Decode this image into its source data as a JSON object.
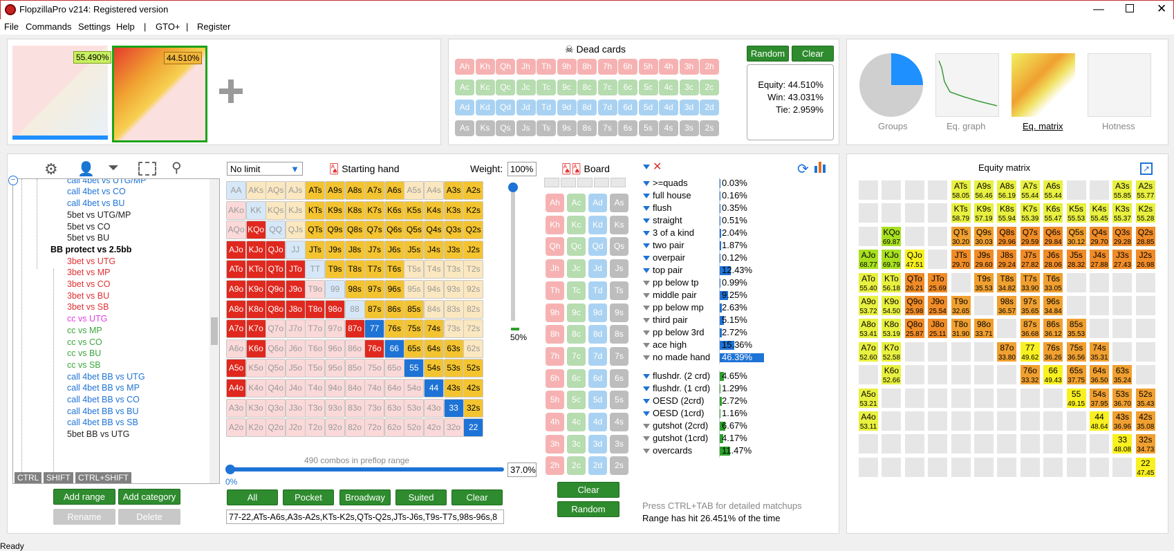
{
  "window": {
    "title": "FlopzillaPro v214: Registered version"
  },
  "menu": [
    "File",
    "Commands",
    "Settings",
    "Help",
    "|",
    "GTO+",
    "|",
    "Register"
  ],
  "ranges": {
    "left_pct": "55.490%",
    "right_pct": "44.510%"
  },
  "dead_cards": {
    "title": "Dead cards",
    "random": "Random",
    "clear": "Clear",
    "rows": [
      [
        "Ah",
        "Kh",
        "Qh",
        "Jh",
        "Th",
        "9h",
        "8h",
        "7h",
        "6h",
        "5h",
        "4h",
        "3h",
        "2h"
      ],
      [
        "Ac",
        "Kc",
        "Qc",
        "Jc",
        "Tc",
        "9c",
        "8c",
        "7c",
        "6c",
        "5c",
        "4c",
        "3c",
        "2c"
      ],
      [
        "Ad",
        "Kd",
        "Qd",
        "Jd",
        "Td",
        "9d",
        "8d",
        "7d",
        "6d",
        "5d",
        "4d",
        "3d",
        "2d"
      ],
      [
        "As",
        "Ks",
        "Qs",
        "Js",
        "Ts",
        "9s",
        "8s",
        "7s",
        "6s",
        "5s",
        "4s",
        "3s",
        "2s"
      ]
    ],
    "colors": [
      "#f6b2b2",
      "#b6dcb0",
      "#a9d2f2",
      "#bdbdbd"
    ]
  },
  "equity": {
    "equity": "Equity: 44.510%",
    "win": "Win: 43.031%",
    "tie": "Tie: 2.959%"
  },
  "views": [
    {
      "label": "Groups"
    },
    {
      "label": "Eq. graph"
    },
    {
      "label": "Eq. matrix"
    },
    {
      "label": "Hotness"
    }
  ],
  "tree": {
    "items": [
      {
        "t": "5bet vs BU",
        "c": "#e03030",
        "x": 96
      },
      {
        "t": "call 4bet vs UTG/MP",
        "c": "#1e73d6",
        "x": 96
      },
      {
        "t": "call 4bet vs CO",
        "c": "#1e73d6",
        "x": 96
      },
      {
        "t": "call 4bet vs BU",
        "c": "#1e73d6",
        "x": 96
      },
      {
        "t": "5bet vs UTG/MP",
        "c": "#222",
        "x": 96
      },
      {
        "t": "5bet vs CO",
        "c": "#222",
        "x": 96
      },
      {
        "t": "5bet vs BU",
        "c": "#222",
        "x": 96
      },
      {
        "t": "BB protect vs 2.5bb",
        "c": "#000",
        "x": 72,
        "bold": true
      },
      {
        "t": "3bet vs UTG",
        "c": "#e03030",
        "x": 96
      },
      {
        "t": "3bet vs MP",
        "c": "#e03030",
        "x": 96
      },
      {
        "t": "3bet vs CO",
        "c": "#e03030",
        "x": 96
      },
      {
        "t": "3bet vs BU",
        "c": "#e03030",
        "x": 96
      },
      {
        "t": "3bet vs SB",
        "c": "#e03030",
        "x": 96
      },
      {
        "t": "cc vs UTG",
        "c": "#e040e0",
        "x": 96
      },
      {
        "t": "cc vs MP",
        "c": "#3ca63c",
        "x": 96
      },
      {
        "t": "cc vs CO",
        "c": "#3ca63c",
        "x": 96
      },
      {
        "t": "cc vs BU",
        "c": "#3ca63c",
        "x": 96
      },
      {
        "t": "cc vs SB",
        "c": "#3ca63c",
        "x": 96
      },
      {
        "t": "call 4bet BB vs UTG",
        "c": "#1e73d6",
        "x": 96
      },
      {
        "t": "call 4bet BB vs MP",
        "c": "#1e73d6",
        "x": 96
      },
      {
        "t": "call 4bet BB vs CO",
        "c": "#1e73d6",
        "x": 96
      },
      {
        "t": "call 4bet BB vs BU",
        "c": "#1e73d6",
        "x": 96
      },
      {
        "t": "call 4bet BB vs SB",
        "c": "#1e73d6",
        "x": 96
      },
      {
        "t": "5bet BB vs UTG",
        "c": "#222",
        "x": 96
      }
    ],
    "keys": [
      "CTRL",
      "SHIFT",
      "CTRL+SHIFT"
    ],
    "add_range": "Add range",
    "add_category": "Add category",
    "rename": "Rename",
    "delete": "Delete"
  },
  "hand": {
    "limit": "No limit",
    "starting_hand": "Starting hand",
    "weight_label": "Weight:",
    "weight": "100%",
    "slider_pct": "50%",
    "combos": "490 combos in preflop range",
    "range_pct": "37.0%",
    "zero": "0%",
    "buttons": [
      "All",
      "Pocket",
      "Broadway",
      "Suited",
      "Clear"
    ],
    "range_text": "77-22,ATs-A6s,A3s-A2s,KTs-K2s,QTs-Q2s,JTs-J6s,T9s-T7s,98s-96s,8"
  },
  "board": {
    "title": "Board",
    "clear": "Clear",
    "random": "Random",
    "ranks": [
      "A",
      "K",
      "Q",
      "J",
      "T",
      "9",
      "8",
      "7",
      "6",
      "5",
      "4",
      "3",
      "2"
    ],
    "suits": [
      "h",
      "c",
      "d",
      "s"
    ]
  },
  "stats": {
    "made": [
      {
        "l": ">=quads",
        "v": "0.03%",
        "p": 0.03,
        "f": 1
      },
      {
        "l": "full house",
        "v": "0.16%",
        "p": 0.16,
        "f": 1
      },
      {
        "l": "flush",
        "v": "0.35%",
        "p": 0.35,
        "f": 1
      },
      {
        "l": "straight",
        "v": "0.51%",
        "p": 0.51,
        "f": 1
      },
      {
        "l": "3 of a kind",
        "v": "2.04%",
        "p": 2.04,
        "f": 1
      },
      {
        "l": "two pair",
        "v": "1.87%",
        "p": 1.87,
        "f": 1
      },
      {
        "l": "overpair",
        "v": "0.12%",
        "p": 0.12,
        "f": 1
      },
      {
        "l": "top pair",
        "v": "12.43%",
        "p": 12.43,
        "f": 1
      },
      {
        "l": "pp below tp",
        "v": "0.99%",
        "p": 0.99,
        "f": 0
      },
      {
        "l": "middle pair",
        "v": "9.25%",
        "p": 9.25,
        "f": 0
      },
      {
        "l": "pp below mp",
        "v": "2.63%",
        "p": 2.63,
        "f": 0
      },
      {
        "l": "third pair",
        "v": "5.15%",
        "p": 5.15,
        "f": 0
      },
      {
        "l": "pp below 3rd",
        "v": "2.72%",
        "p": 2.72,
        "f": 0
      },
      {
        "l": "ace high",
        "v": "15.36%",
        "p": 15.36,
        "f": 0
      },
      {
        "l": "no made hand",
        "v": "46.39%",
        "p": 46.39,
        "f": 0
      }
    ],
    "draws": [
      {
        "l": "flushdr. (2 crd)",
        "v": "4.65%",
        "p": 4.65,
        "f": 1
      },
      {
        "l": "flushdr. (1 crd)",
        "v": "1.29%",
        "p": 1.29,
        "f": 1
      },
      {
        "l": "OESD (2crd)",
        "v": "2.72%",
        "p": 2.72,
        "f": 1
      },
      {
        "l": "OESD (1crd)",
        "v": "1.16%",
        "p": 1.16,
        "f": 1
      },
      {
        "l": "gutshot (2crd)",
        "v": "6.67%",
        "p": 6.67,
        "f": 0
      },
      {
        "l": "gutshot (1crd)",
        "v": "4.17%",
        "p": 4.17,
        "f": 0
      },
      {
        "l": "overcards",
        "v": "11.47%",
        "p": 11.47,
        "f": 0
      }
    ],
    "hint": "Press CTRL+TAB for detailed matchups",
    "hit": "Range has hit 26.451% of the time"
  },
  "matrix": {
    "title": "Equity matrix"
  }
}
